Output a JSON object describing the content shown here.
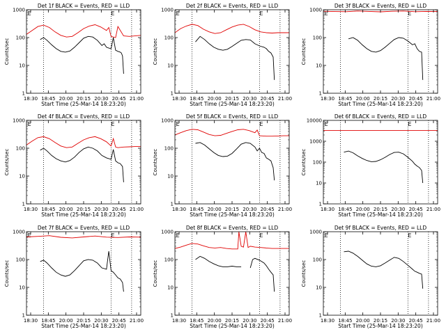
{
  "figure": {
    "type": "line",
    "xlabel": "Start Time (25-Mar-14 18:23:20)",
    "ylabel": "Counts/sec",
    "x_ticks": [
      "18:30",
      "18:45",
      "20:00",
      "20:15",
      "20:30",
      "20:45",
      "21:00"
    ],
    "series_legend": "BLACK = Events, RED = LLD",
    "colors": {
      "events": "#000000",
      "lld": "#e00000",
      "axes": "#000000"
    },
    "log_y": true,
    "grid": false
  },
  "chart_data": [
    {
      "type": "line",
      "title": "Det 1f BLACK = Events, RED = LLD",
      "y_ticks": [
        "1",
        "10",
        "100",
        "1000"
      ],
      "ylim": [
        1,
        1000
      ],
      "markers": [
        "E",
        "E"
      ],
      "series": [
        {
          "name": "Events",
          "color": "#000000",
          "x": [
            0.12,
            0.15,
            0.18,
            0.22,
            0.26,
            0.3,
            0.34,
            0.38,
            0.42,
            0.46,
            0.5,
            0.54,
            0.58,
            0.62,
            0.66,
            0.68,
            0.7,
            0.72,
            0.74,
            0.76,
            0.78,
            0.8,
            0.82,
            0.83,
            0.84,
            0.85
          ],
          "y": [
            85,
            100,
            80,
            55,
            40,
            32,
            30,
            33,
            45,
            65,
            95,
            110,
            105,
            80,
            52,
            60,
            45,
            42,
            40,
            100,
            35,
            32,
            30,
            28,
            22,
            5
          ]
        },
        {
          "name": "LLD",
          "color": "#e00000",
          "x": [
            0.0,
            0.05,
            0.1,
            0.15,
            0.2,
            0.25,
            0.3,
            0.35,
            0.4,
            0.45,
            0.5,
            0.55,
            0.6,
            0.65,
            0.7,
            0.72,
            0.74,
            0.76,
            0.78,
            0.8,
            0.85,
            0.9,
            0.95,
            1.0
          ],
          "y": [
            130,
            180,
            250,
            280,
            230,
            160,
            120,
            105,
            110,
            150,
            210,
            260,
            290,
            240,
            180,
            230,
            110,
            105,
            100,
            250,
            115,
            110,
            115,
            120
          ]
        }
      ]
    },
    {
      "type": "line",
      "title": "Det 2f BLACK = Events, RED = LLD",
      "y_ticks": [
        "1",
        "10",
        "100",
        "1000"
      ],
      "ylim": [
        1,
        1000
      ],
      "markers": [
        "E",
        "E"
      ],
      "series": [
        {
          "name": "Events",
          "color": "#000000",
          "x": [
            0.18,
            0.22,
            0.26,
            0.3,
            0.34,
            0.38,
            0.42,
            0.46,
            0.5,
            0.54,
            0.58,
            0.62,
            0.66,
            0.7,
            0.74,
            0.78,
            0.8,
            0.82,
            0.84,
            0.86,
            0.87
          ],
          "y": [
            70,
            110,
            85,
            60,
            45,
            38,
            35,
            38,
            48,
            62,
            80,
            85,
            82,
            60,
            50,
            45,
            40,
            32,
            28,
            20,
            3
          ]
        },
        {
          "name": "LLD",
          "color": "#e00000",
          "x": [
            0.0,
            0.05,
            0.1,
            0.15,
            0.2,
            0.25,
            0.3,
            0.35,
            0.4,
            0.45,
            0.5,
            0.55,
            0.6,
            0.65,
            0.7,
            0.75,
            0.8,
            0.85,
            0.9,
            0.95,
            1.0
          ],
          "y": [
            150,
            210,
            260,
            300,
            270,
            200,
            160,
            140,
            150,
            190,
            240,
            280,
            300,
            250,
            190,
            160,
            150,
            145,
            150,
            150,
            150
          ]
        }
      ]
    },
    {
      "type": "line",
      "title": "Det 3f BLACK = Events, RED = LLD",
      "y_ticks": [
        "1",
        "10",
        "100",
        "1000"
      ],
      "ylim": [
        1,
        1000
      ],
      "markers": [
        "E",
        "E"
      ],
      "series": [
        {
          "name": "Events",
          "color": "#000000",
          "x": [
            0.22,
            0.26,
            0.3,
            0.34,
            0.38,
            0.42,
            0.46,
            0.5,
            0.54,
            0.58,
            0.62,
            0.66,
            0.7,
            0.74,
            0.78,
            0.8,
            0.82,
            0.84,
            0.86,
            0.87
          ],
          "y": [
            90,
            100,
            80,
            55,
            40,
            32,
            30,
            34,
            45,
            62,
            85,
            100,
            95,
            75,
            55,
            60,
            40,
            32,
            30,
            3
          ]
        },
        {
          "name": "LLD",
          "color": "#e00000",
          "x": [
            0.0,
            0.1,
            0.2,
            0.3,
            0.4,
            0.5,
            0.6,
            0.7,
            0.8,
            0.9,
            1.0
          ],
          "y": [
            880,
            860,
            850,
            900,
            870,
            840,
            880,
            900,
            850,
            870,
            860
          ]
        }
      ]
    },
    {
      "type": "line",
      "title": "Det 4f BLACK = Events, RED = LLD",
      "y_ticks": [
        "1",
        "10",
        "100",
        "1000"
      ],
      "ylim": [
        1,
        1000
      ],
      "markers": [
        "E",
        "E"
      ],
      "series": [
        {
          "name": "Events",
          "color": "#000000",
          "x": [
            0.12,
            0.15,
            0.18,
            0.22,
            0.26,
            0.3,
            0.34,
            0.38,
            0.42,
            0.46,
            0.5,
            0.54,
            0.58,
            0.62,
            0.66,
            0.7,
            0.74,
            0.76,
            0.78,
            0.8,
            0.82,
            0.84,
            0.85
          ],
          "y": [
            85,
            100,
            80,
            55,
            42,
            35,
            32,
            36,
            48,
            70,
            95,
            110,
            100,
            80,
            55,
            45,
            40,
            90,
            35,
            30,
            28,
            22,
            6
          ]
        },
        {
          "name": "LLD",
          "color": "#e00000",
          "x": [
            0.0,
            0.05,
            0.1,
            0.15,
            0.2,
            0.25,
            0.3,
            0.35,
            0.4,
            0.45,
            0.5,
            0.55,
            0.6,
            0.65,
            0.7,
            0.74,
            0.76,
            0.78,
            0.8,
            0.85,
            0.9,
            0.95,
            1.0
          ],
          "y": [
            130,
            180,
            240,
            260,
            220,
            160,
            120,
            105,
            110,
            150,
            200,
            240,
            260,
            220,
            170,
            120,
            220,
            110,
            105,
            110,
            112,
            115,
            115
          ]
        }
      ]
    },
    {
      "type": "line",
      "title": "Det 5f BLACK = Events, RED = LLD",
      "y_ticks": [
        "1",
        "10",
        "100",
        "1000"
      ],
      "ylim": [
        1,
        1000
      ],
      "markers": [
        "E",
        "E"
      ],
      "series": [
        {
          "name": "Events",
          "color": "#000000",
          "x": [
            0.18,
            0.22,
            0.26,
            0.3,
            0.34,
            0.38,
            0.42,
            0.46,
            0.5,
            0.54,
            0.58,
            0.62,
            0.66,
            0.7,
            0.72,
            0.74,
            0.76,
            0.78,
            0.8,
            0.82,
            0.84,
            0.86,
            0.87
          ],
          "y": [
            150,
            160,
            130,
            95,
            70,
            55,
            50,
            52,
            65,
            95,
            140,
            160,
            150,
            110,
            80,
            100,
            70,
            65,
            45,
            40,
            35,
            20,
            7
          ]
        },
        {
          "name": "LLD",
          "color": "#e00000",
          "x": [
            0.0,
            0.05,
            0.1,
            0.15,
            0.2,
            0.25,
            0.3,
            0.35,
            0.4,
            0.45,
            0.5,
            0.55,
            0.6,
            0.65,
            0.7,
            0.72,
            0.74,
            0.8,
            0.85,
            0.9,
            0.95,
            1.0
          ],
          "y": [
            300,
            360,
            430,
            480,
            460,
            380,
            310,
            280,
            290,
            340,
            400,
            460,
            480,
            430,
            360,
            450,
            280,
            270,
            270,
            275,
            280,
            280
          ]
        }
      ]
    },
    {
      "type": "line",
      "title": "Det 6f BLACK = Events, RED = LLD",
      "y_ticks": [
        "1",
        "10",
        "100",
        "1000",
        "10000"
      ],
      "ylim": [
        1,
        10000
      ],
      "markers": [
        "E",
        "E"
      ],
      "series": [
        {
          "name": "Events",
          "color": "#000000",
          "x": [
            0.18,
            0.22,
            0.26,
            0.3,
            0.34,
            0.38,
            0.42,
            0.46,
            0.5,
            0.54,
            0.58,
            0.62,
            0.66,
            0.7,
            0.74,
            0.78,
            0.8,
            0.82,
            0.84,
            0.86,
            0.87
          ],
          "y": [
            300,
            340,
            280,
            200,
            150,
            120,
            105,
            108,
            130,
            170,
            230,
            290,
            300,
            250,
            170,
            110,
            80,
            65,
            55,
            40,
            10
          ]
        },
        {
          "name": "LLD",
          "color": "#e00000",
          "x": [
            0.0,
            1.0
          ],
          "y": [
            3300,
            3300
          ]
        }
      ]
    },
    {
      "type": "line",
      "title": "Det 7f BLACK = Events, RED = LLD",
      "y_ticks": [
        "1",
        "10",
        "100",
        "1000"
      ],
      "ylim": [
        1,
        1000
      ],
      "markers": [
        "E",
        "E"
      ],
      "series": [
        {
          "name": "Events",
          "color": "#000000",
          "x": [
            0.12,
            0.15,
            0.18,
            0.22,
            0.26,
            0.3,
            0.34,
            0.38,
            0.42,
            0.46,
            0.5,
            0.54,
            0.58,
            0.62,
            0.66,
            0.7,
            0.72,
            0.74,
            0.76,
            0.78,
            0.8,
            0.82,
            0.84,
            0.85
          ],
          "y": [
            85,
            95,
            75,
            50,
            35,
            28,
            25,
            28,
            40,
            60,
            90,
            100,
            95,
            75,
            50,
            45,
            200,
            40,
            35,
            28,
            22,
            20,
            15,
            7
          ]
        },
        {
          "name": "LLD",
          "color": "#e00000",
          "x": [
            0.0,
            0.1,
            0.2,
            0.3,
            0.4,
            0.5,
            0.6,
            0.7,
            0.8,
            0.9,
            1.0
          ],
          "y": [
            650,
            680,
            720,
            630,
            600,
            650,
            700,
            640,
            620,
            650,
            640
          ]
        }
      ]
    },
    {
      "type": "line",
      "title": "Det 8f BLACK = Events, RED = LLD",
      "y_ticks": [
        "1",
        "10",
        "100",
        "1000"
      ],
      "ylim": [
        1,
        1000
      ],
      "markers": [
        "E",
        "E"
      ],
      "series": [
        {
          "name": "Events",
          "color": "#000000",
          "x": [
            0.18,
            0.22,
            0.26,
            0.3,
            0.34,
            0.38,
            0.42,
            0.46,
            0.5,
            0.54,
            0.58,
            0.6,
            0.62,
            0.64,
            0.66,
            0.68,
            0.7,
            0.74,
            0.78,
            0.8,
            0.82,
            0.84,
            0.86,
            0.87
          ],
          "y": [
            100,
            130,
            110,
            85,
            70,
            60,
            55,
            55,
            58,
            55,
            55,
            null,
            null,
            null,
            50,
            100,
            110,
            95,
            75,
            60,
            45,
            35,
            28,
            7
          ]
        },
        {
          "name": "LLD",
          "color": "#e00000",
          "x": [
            0.0,
            0.05,
            0.1,
            0.15,
            0.2,
            0.25,
            0.3,
            0.35,
            0.4,
            0.45,
            0.5,
            0.55,
            0.56,
            0.58,
            0.6,
            0.62,
            0.64,
            0.66,
            0.7,
            0.75,
            0.8,
            0.85,
            0.9,
            0.95,
            1.0
          ],
          "y": [
            250,
            280,
            330,
            380,
            360,
            310,
            270,
            260,
            270,
            250,
            240,
            240,
            1000,
            300,
            280,
            1000,
            270,
            300,
            280,
            270,
            260,
            250,
            250,
            250,
            250
          ]
        }
      ]
    },
    {
      "type": "line",
      "title": "Det 9f BLACK = Events, RED = LLD",
      "y_ticks": [
        "1",
        "10",
        "100",
        "1000"
      ],
      "ylim": [
        1,
        1000
      ],
      "markers": [
        "E",
        "E"
      ],
      "series": [
        {
          "name": "Events",
          "color": "#000000",
          "x": [
            0.18,
            0.22,
            0.26,
            0.3,
            0.34,
            0.38,
            0.42,
            0.46,
            0.5,
            0.54,
            0.58,
            0.62,
            0.66,
            0.7,
            0.74,
            0.78,
            0.8,
            0.82,
            0.84,
            0.86,
            0.87
          ],
          "y": [
            190,
            200,
            170,
            130,
            95,
            70,
            58,
            55,
            60,
            75,
            95,
            120,
            110,
            85,
            62,
            45,
            38,
            35,
            32,
            30,
            9
          ]
        }
      ]
    }
  ]
}
